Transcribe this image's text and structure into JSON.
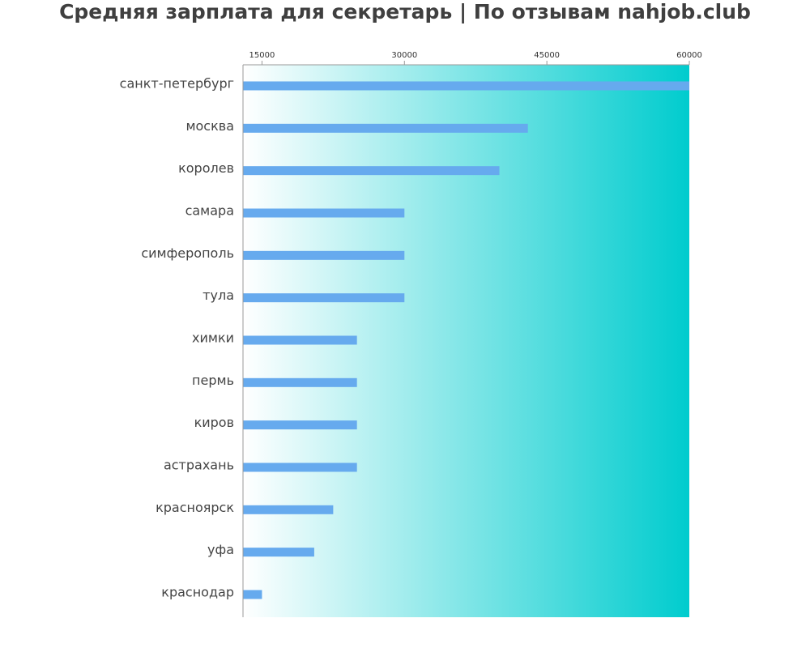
{
  "chart_data": {
    "type": "bar",
    "orientation": "horizontal",
    "title": "Средняя зарплата для секретарь | По отзывам nahjob.club",
    "xlabel": "",
    "ylabel": "",
    "categories": [
      "санкт-петербург",
      "москва",
      "королев",
      "самара",
      "симферополь",
      "тула",
      "химки",
      "пермь",
      "киров",
      "астрахань",
      "красноярск",
      "уфа",
      "краснодар"
    ],
    "values": [
      60000,
      43000,
      40000,
      30000,
      30000,
      30000,
      25000,
      25000,
      25000,
      25000,
      22500,
      20500,
      15000
    ],
    "xlim": [
      13000,
      60000
    ],
    "ticks": [
      15000,
      30000,
      45000,
      60000
    ],
    "tick_labels": [
      "15000",
      "30000",
      "45000",
      "60000"
    ],
    "x_axis_position": "top",
    "grid": false,
    "bar_color": "#66aaee",
    "background_gradient": [
      "#ffffff",
      "#00ccce"
    ]
  }
}
